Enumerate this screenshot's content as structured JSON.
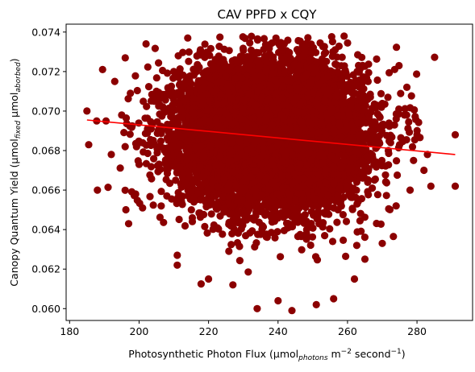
{
  "chart_data": {
    "type": "scatter",
    "title": "CAV PPFD x CQY",
    "xlabel": {
      "main": "Photosynthetic Photon Flux (μmol",
      "sub": "photons",
      "tail": " m",
      "sup1": "−2",
      "tail2": " second",
      "sup2": "−1",
      "end": ")"
    },
    "ylabel": {
      "main": "Canopy Quantum Yield (μmol",
      "sub1": "fixed",
      "mid": " μmol",
      "sub2": "aborbed",
      "end": ")"
    },
    "xlim": [
      179,
      296
    ],
    "ylim": [
      0.0594,
      0.0744
    ],
    "x_ticks": [
      "180",
      "200",
      "220",
      "240",
      "260",
      "280"
    ],
    "y_ticks": [
      "0.060",
      "0.062",
      "0.064",
      "0.066",
      "0.068",
      "0.070",
      "0.072",
      "0.074"
    ],
    "grid": false,
    "point_color": "#8b0000",
    "line_color": "#ff0000",
    "cloud": {
      "x_mean": 238,
      "x_sd": 13,
      "y_mean": 0.0688,
      "y_sd": 0.0018,
      "approx_n": 9000
    },
    "outliers": [
      {
        "x": 185,
        "y": 0.07
      },
      {
        "x": 185.5,
        "y": 0.0683
      },
      {
        "x": 187.8,
        "y": 0.0695
      },
      {
        "x": 188,
        "y": 0.066
      },
      {
        "x": 189.5,
        "y": 0.0721
      },
      {
        "x": 190.5,
        "y": 0.0695
      },
      {
        "x": 192,
        "y": 0.0678
      },
      {
        "x": 193,
        "y": 0.0715
      },
      {
        "x": 195,
        "y": 0.0698
      },
      {
        "x": 196,
        "y": 0.0682
      },
      {
        "x": 197,
        "y": 0.0643
      },
      {
        "x": 197.5,
        "y": 0.0709
      },
      {
        "x": 199,
        "y": 0.0658
      },
      {
        "x": 200,
        "y": 0.0673
      },
      {
        "x": 201,
        "y": 0.0651
      },
      {
        "x": 202,
        "y": 0.0734
      },
      {
        "x": 205,
        "y": 0.071
      },
      {
        "x": 208,
        "y": 0.0657
      },
      {
        "x": 210,
        "y": 0.072
      },
      {
        "x": 211,
        "y": 0.0627
      },
      {
        "x": 211,
        "y": 0.0622
      },
      {
        "x": 214,
        "y": 0.0737
      },
      {
        "x": 220,
        "y": 0.0615
      },
      {
        "x": 227,
        "y": 0.0612
      },
      {
        "x": 234,
        "y": 0.06
      },
      {
        "x": 237.5,
        "y": 0.0733
      },
      {
        "x": 240,
        "y": 0.0604
      },
      {
        "x": 244,
        "y": 0.0599
      },
      {
        "x": 246,
        "y": 0.0727
      },
      {
        "x": 251,
        "y": 0.0602
      },
      {
        "x": 256,
        "y": 0.0605
      },
      {
        "x": 262,
        "y": 0.0615
      },
      {
        "x": 265,
        "y": 0.0625
      },
      {
        "x": 270,
        "y": 0.0633
      },
      {
        "x": 274,
        "y": 0.0652
      },
      {
        "x": 275,
        "y": 0.0683
      },
      {
        "x": 277,
        "y": 0.0698
      },
      {
        "x": 278,
        "y": 0.066
      },
      {
        "x": 279,
        "y": 0.0675
      },
      {
        "x": 280,
        "y": 0.0688
      },
      {
        "x": 282,
        "y": 0.067
      },
      {
        "x": 283,
        "y": 0.0678
      },
      {
        "x": 284,
        "y": 0.0662
      },
      {
        "x": 291,
        "y": 0.0688
      },
      {
        "x": 291,
        "y": 0.0662
      }
    ],
    "trend": {
      "x": [
        185,
        291
      ],
      "y": [
        0.06955,
        0.0678
      ]
    }
  }
}
